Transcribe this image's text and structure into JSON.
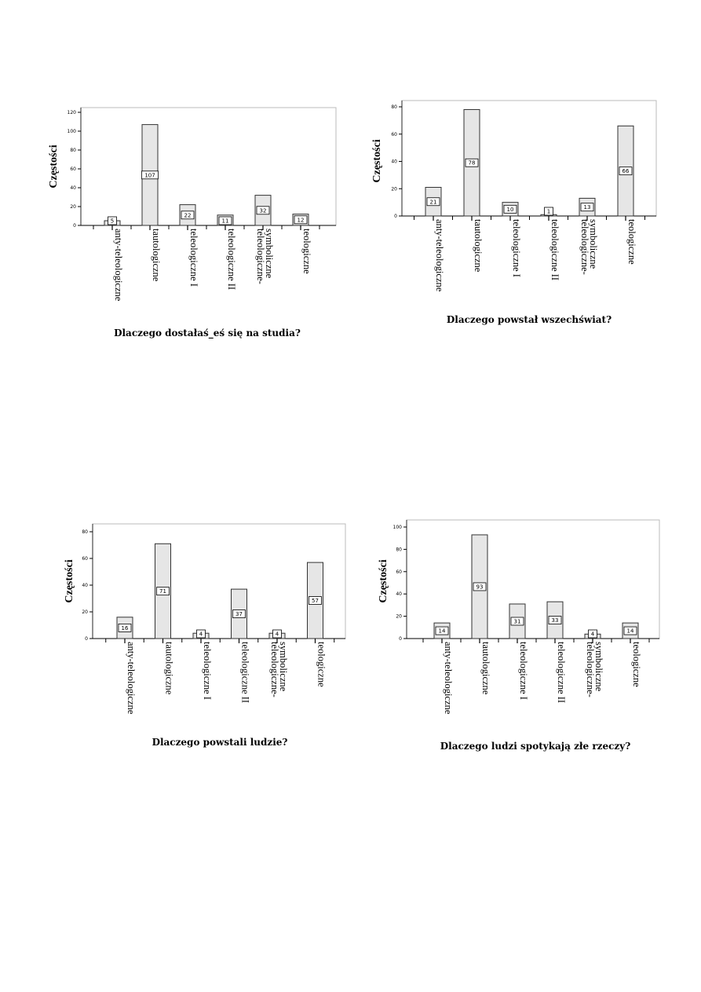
{
  "chart_data": [
    {
      "type": "bar",
      "title": "Dlaczego dostałaś_eś się na studia?",
      "xlabel": "Dlaczego dostałaś_eś się na studia?",
      "ylabel": "Częstości",
      "categories": [
        [
          "anty-teleologiczne"
        ],
        [
          "tautologiczne"
        ],
        [
          "teleologiczne I"
        ],
        [
          "teleologiczne II"
        ],
        [
          "teleologiczne-",
          "symboliczne"
        ],
        [
          "teologiczne"
        ]
      ],
      "values": [
        5,
        107,
        22,
        11,
        32,
        12
      ],
      "yticks": [
        0,
        20,
        40,
        60,
        80,
        100,
        120
      ],
      "ylim": [
        0,
        120
      ],
      "grid": false
    },
    {
      "type": "bar",
      "title": "Dlaczego powstał wszechświat?",
      "xlabel": "Dlaczego powstał wszechświat?",
      "ylabel": "Częstości",
      "categories": [
        [
          "anty-teleologiczne"
        ],
        [
          "tautologiczne"
        ],
        [
          "teleologiczne I"
        ],
        [
          "teleologiczne II"
        ],
        [
          "teleologiczne-",
          "symboliczne"
        ],
        [
          "teologiczne"
        ]
      ],
      "values": [
        21,
        78,
        10,
        1,
        13,
        66
      ],
      "yticks": [
        0,
        20,
        40,
        60,
        80
      ],
      "ylim": [
        0,
        80
      ],
      "grid": false
    },
    {
      "type": "bar",
      "title": "Dlaczego powstali ludzie?",
      "xlabel": "Dlaczego powstali ludzie?",
      "ylabel": "Częstości",
      "categories": [
        [
          "anty-teleologiczne"
        ],
        [
          "tautologiczne"
        ],
        [
          "teleologiczne I"
        ],
        [
          "teleologiczne II"
        ],
        [
          "teleologiczne-",
          "symboliczne"
        ],
        [
          "teologiczne"
        ]
      ],
      "values": [
        16,
        71,
        4,
        37,
        4,
        57
      ],
      "yticks": [
        0,
        20,
        40,
        60,
        80
      ],
      "ylim": [
        0,
        80
      ],
      "grid": false
    },
    {
      "type": "bar",
      "title": "Dlaczego ludzi spotykają złe rzeczy?",
      "xlabel": "Dlaczego ludzi spotykają złe rzeczy?",
      "ylabel": "Częstości",
      "categories": [
        [
          "anty-teleologiczne"
        ],
        [
          "tautologiczne"
        ],
        [
          "teleologiczne I"
        ],
        [
          "teleologiczne II"
        ],
        [
          "teleologiczne-",
          "symboliczne"
        ],
        [
          "teologiczne"
        ]
      ],
      "values": [
        14,
        93,
        31,
        33,
        4,
        14
      ],
      "yticks": [
        0,
        20,
        40,
        60,
        80,
        100
      ],
      "ylim": [
        0,
        100
      ],
      "grid": false
    }
  ],
  "colors": {
    "bar_fill": "#e6e6e6",
    "bar_stroke": "#333333",
    "frame": "#bbbbbb"
  }
}
